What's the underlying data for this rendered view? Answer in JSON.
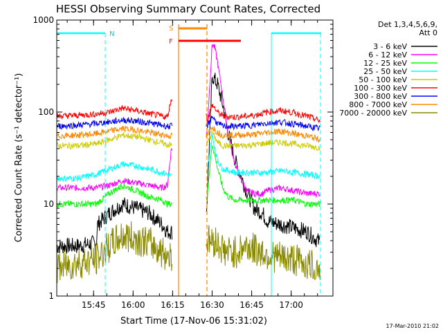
{
  "chart_data": {
    "type": "line",
    "title": "HESSI Observing Summary Count Rates, Corrected",
    "xlabel": "Start Time (17-Nov-06 15:31:02)",
    "ylabel": "Corrected Count Rate (s⁻¹ detector⁻¹)",
    "yscale": "log",
    "ylim": [
      1,
      1000
    ],
    "xlim_minutes_after_15_31_02": [
      0,
      100
    ],
    "ytick_labels": [
      "1",
      "10",
      "100",
      "1000"
    ],
    "xtick_labels": [
      "15:45",
      "16:00",
      "16:15",
      "16:30",
      "16:45",
      "17:00"
    ],
    "legend": {
      "placement": "right",
      "header": [
        "Det 1,3,4,5,6,9,",
        "Att 0"
      ],
      "entries": [
        {
          "label": "3 - 6 keV",
          "color": "#000000"
        },
        {
          "label": "6 - 12 keV",
          "color": "#ff00ff"
        },
        {
          "label": "12 - 25 keV",
          "color": "#00ff00"
        },
        {
          "label": "25 - 50 keV",
          "color": "#00ffff"
        },
        {
          "label": "50 - 100 keV",
          "color": "#cccc00"
        },
        {
          "label": "100 - 300 keV",
          "color": "#ff0000"
        },
        {
          "label": "300 - 800 keV",
          "color": "#0000ff"
        },
        {
          "label": "800 - 7000 keV",
          "color": "#ff8800"
        },
        {
          "label": "7000 - 20000 keV",
          "color": "#888800"
        }
      ]
    },
    "series": [
      {
        "name": "3 - 6 keV",
        "color": "#000000",
        "x": [
          0,
          8,
          15,
          15.5,
          20,
          25,
          30,
          35,
          40,
          42,
          43.5,
          56,
          57,
          59,
          61,
          63,
          65,
          68,
          72,
          75,
          78,
          80,
          85,
          90,
          95,
          100
        ],
        "y": [
          3.5,
          3.5,
          3.8,
          6,
          8,
          10,
          9,
          8,
          6,
          5,
          5,
          5,
          10,
          250,
          200,
          120,
          60,
          28,
          14,
          9,
          8,
          6.5,
          6,
          5.5,
          5,
          3.8
        ]
      },
      {
        "name": "6 - 12 keV",
        "color": "#ff00ff",
        "x": [
          0,
          8,
          15,
          20,
          25,
          30,
          35,
          40,
          42,
          43.5,
          56,
          57,
          59,
          60,
          61,
          63,
          65,
          68,
          72,
          75,
          78,
          80,
          85,
          90,
          95,
          100
        ],
        "y": [
          15,
          15,
          15,
          16,
          18,
          17,
          16,
          15,
          16,
          40,
          40,
          60,
          550,
          500,
          350,
          150,
          60,
          25,
          14,
          13,
          13,
          14,
          15,
          14,
          13,
          13
        ]
      },
      {
        "name": "12 - 25 keV",
        "color": "#00ff00",
        "x": [
          0,
          8,
          15,
          20,
          25,
          30,
          35,
          40,
          42,
          43.5,
          56,
          57,
          59,
          61,
          63,
          65,
          68,
          72,
          75,
          80,
          85,
          90,
          95,
          100
        ],
        "y": [
          10,
          10,
          10,
          13,
          16,
          14,
          12,
          11,
          10,
          10,
          10,
          12,
          45,
          25,
          15,
          12,
          11,
          11,
          11,
          11,
          11,
          11,
          10,
          10
        ]
      },
      {
        "name": "25 - 50 keV",
        "color": "#00ffff",
        "x": [
          0,
          8,
          15,
          20,
          25,
          30,
          35,
          40,
          42,
          43.5,
          56,
          57,
          59,
          61,
          63,
          68,
          75,
          80,
          85,
          90,
          95,
          100
        ],
        "y": [
          19,
          19,
          21,
          24,
          27,
          26,
          24,
          22,
          21,
          20,
          20,
          22,
          55,
          30,
          24,
          22,
          22,
          22,
          23,
          22,
          21,
          20
        ]
      },
      {
        "name": "50 - 100 keV",
        "color": "#cccc00",
        "x": [
          0,
          8,
          15,
          20,
          25,
          30,
          35,
          40,
          42,
          43.5,
          56,
          57,
          59,
          61,
          63,
          68,
          75,
          80,
          85,
          90,
          95,
          100
        ],
        "y": [
          43,
          43,
          45,
          50,
          56,
          54,
          50,
          46,
          44,
          44,
          44,
          45,
          60,
          47,
          43,
          43,
          44,
          46,
          47,
          45,
          43,
          41
        ]
      },
      {
        "name": "100 - 300 keV",
        "color": "#ff0000",
        "x": [
          0,
          8,
          15,
          20,
          25,
          30,
          35,
          40,
          42,
          43.5,
          56,
          57,
          59,
          61,
          63,
          68,
          75,
          80,
          85,
          90,
          95,
          100
        ],
        "y": [
          90,
          92,
          95,
          100,
          110,
          104,
          96,
          90,
          88,
          140,
          140,
          80,
          120,
          100,
          90,
          88,
          92,
          100,
          104,
          98,
          90,
          80
        ]
      },
      {
        "name": "300 - 800 keV",
        "color": "#0000ff",
        "x": [
          0,
          8,
          15,
          20,
          25,
          30,
          35,
          40,
          42,
          43.5,
          56,
          57,
          59,
          61,
          63,
          68,
          75,
          80,
          85,
          90,
          95,
          100
        ],
        "y": [
          70,
          72,
          75,
          78,
          82,
          80,
          76,
          72,
          70,
          70,
          70,
          70,
          90,
          75,
          70,
          70,
          72,
          76,
          78,
          74,
          70,
          66
        ]
      },
      {
        "name": "800 - 7000 keV",
        "color": "#ff8800",
        "x": [
          0,
          8,
          15,
          20,
          25,
          30,
          35,
          40,
          42,
          43.5,
          56,
          57,
          59,
          61,
          63,
          68,
          75,
          80,
          85,
          90,
          95,
          100
        ],
        "y": [
          55,
          56,
          58,
          62,
          66,
          64,
          60,
          57,
          55,
          55,
          55,
          55,
          70,
          60,
          56,
          56,
          57,
          60,
          62,
          58,
          55,
          50
        ]
      },
      {
        "name": "7000 - 20000 keV",
        "color": "#888800",
        "x": [
          0,
          8,
          15,
          20,
          25,
          30,
          35,
          40,
          42,
          43.5,
          56,
          57,
          60,
          62,
          64,
          68,
          72,
          75,
          78,
          80,
          85,
          90,
          95,
          100
        ],
        "y": [
          2,
          2.3,
          2.5,
          3.5,
          4.5,
          4.2,
          3.8,
          3,
          2.8,
          2.8,
          2.8,
          4,
          4,
          3.5,
          3,
          3,
          3.5,
          3.2,
          3,
          2.8,
          2.6,
          2.5,
          2.2,
          2
        ]
      }
    ],
    "annotations": {
      "night_label": "N",
      "saa_label": "S",
      "flare_label": "F",
      "timestamp": "17-Mar-2010 21:02"
    }
  }
}
